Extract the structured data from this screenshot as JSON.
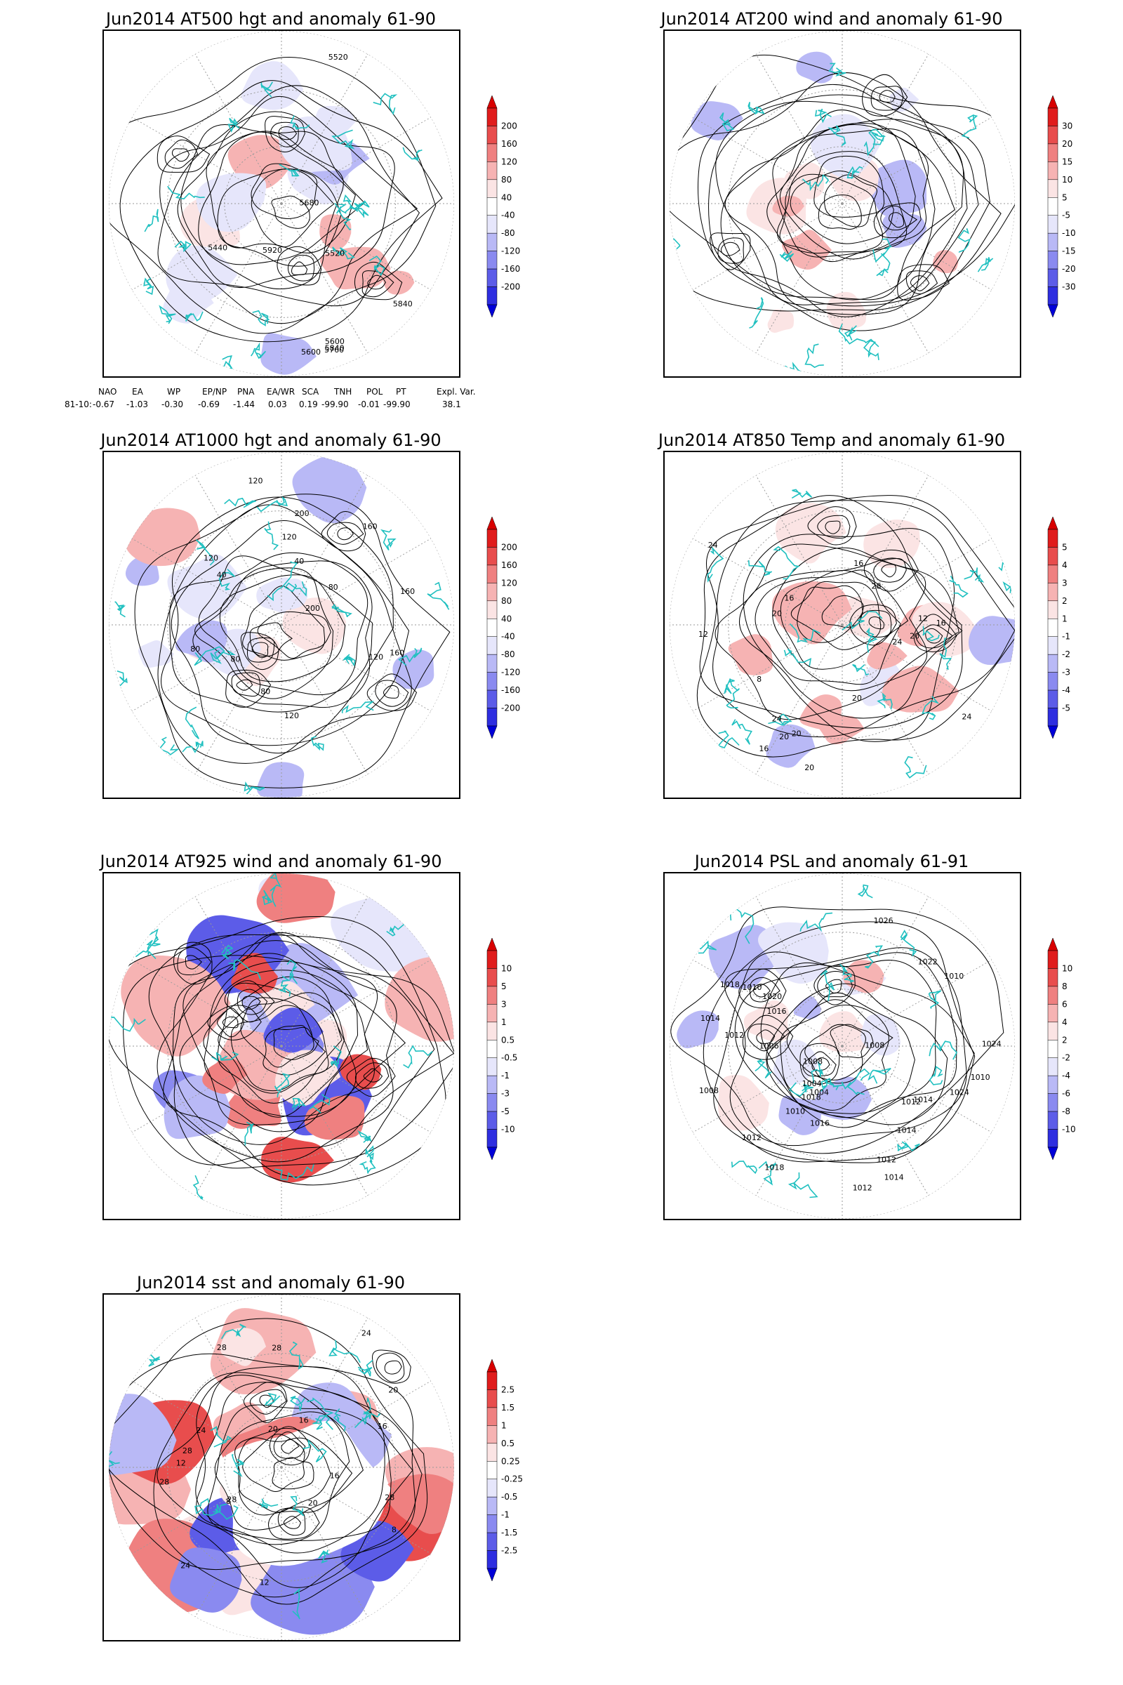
{
  "colors": {
    "coast": "#20c0c0",
    "contour": "#000000",
    "grid": "#9a9a9a",
    "pos": [
      "#fbe4e4",
      "#f6b3b3",
      "#ef8080",
      "#e84d4d",
      "#e01c1c",
      "#d80000"
    ],
    "neg": [
      "#e6e6fb",
      "#b9b9f6",
      "#8a8af0",
      "#5c5ce8",
      "#2e2ee0",
      "#0000d8"
    ]
  },
  "panels": [
    {
      "id": "at500",
      "title": "Jun2014 AT500 hgt and anomaly 61-90",
      "colorbar": [
        "200",
        "160",
        "120",
        "80",
        "40",
        "-40",
        "-80",
        "-120",
        "-160",
        "-200"
      ],
      "contour_labels": [
        "5840",
        "5600",
        "5520",
        "5440",
        "5520",
        "5600",
        "5680",
        "5760",
        "5840",
        "5920"
      ]
    },
    {
      "id": "at200",
      "title": "Jun2014 AT200 wind and anomaly 61-90",
      "colorbar": [
        "30",
        "20",
        "15",
        "10",
        "5",
        "-5",
        "-10",
        "-15",
        "-20",
        "-30"
      ],
      "contour_labels": []
    },
    {
      "id": "at1000",
      "title": "Jun2014 AT1000 hgt and anomaly 61-90",
      "colorbar": [
        "200",
        "160",
        "120",
        "80",
        "40",
        "-40",
        "-80",
        "-120",
        "-160",
        "-200"
      ],
      "contour_labels": [
        "120",
        "80",
        "200",
        "160",
        "120",
        "80",
        "40",
        "120",
        "160",
        "200",
        "160",
        "40",
        "120",
        "80",
        "80",
        "120"
      ]
    },
    {
      "id": "at850",
      "title": "Jun2014 AT850 Temp and anomaly 61-90",
      "colorbar": [
        "5",
        "4",
        "3",
        "2",
        "1",
        "-1",
        "-2",
        "-3",
        "-4",
        "-5"
      ],
      "contour_labels": [
        "16",
        "12",
        "16",
        "24",
        "20",
        "16",
        "8",
        "12",
        "24",
        "20",
        "20",
        "16",
        "20",
        "24",
        "28",
        "24",
        "20",
        "20"
      ]
    },
    {
      "id": "at925",
      "title": "Jun2014 AT925 wind and anomaly 61-90",
      "colorbar": [
        "10",
        "5",
        "3",
        "1",
        "0.5",
        "-0.5",
        "-1",
        "-3",
        "-5",
        "-10"
      ],
      "contour_labels": []
    },
    {
      "id": "psl",
      "title": "Jun2014 PSL and anomaly 61-91",
      "colorbar": [
        "10",
        "8",
        "6",
        "4",
        "2",
        "-2",
        "-4",
        "-6",
        "-8",
        "-10"
      ],
      "contour_labels": [
        "1010",
        "1012",
        "1014",
        "1016",
        "1018",
        "1026",
        "1024",
        "1010",
        "1012",
        "1014",
        "1018",
        "1008",
        "1006",
        "1004",
        "1010",
        "1012",
        "1008",
        "1004",
        "1024",
        "1022",
        "1020",
        "1018",
        "1016",
        "1014",
        "1012",
        "1010",
        "1008",
        "1012",
        "1014"
      ]
    },
    {
      "id": "sst",
      "title": "Jun2014 sst and anomaly 61-90",
      "colorbar": [
        "2.5",
        "1.5",
        "1",
        "0.5",
        "0.25",
        "-0.25",
        "-0.5",
        "-1",
        "-1.5",
        "-2.5"
      ],
      "contour_labels": [
        "28",
        "28",
        "24",
        "24",
        "20",
        "16",
        "12",
        "8",
        "16",
        "28",
        "20",
        "12",
        "8",
        "16",
        "20",
        "24",
        "28",
        "28",
        "28"
      ]
    }
  ],
  "teleconnection": {
    "headers": [
      "NAO",
      "EA",
      "WP",
      "EP/NP",
      "PNA",
      "EA/WR",
      "SCA",
      "TNH",
      "POL",
      "PT",
      "Expl. Var."
    ],
    "row_label": "81-10:",
    "values": [
      "-0.67",
      "-1.03",
      "-0.30",
      "-0.69",
      "-1.44",
      "0.03",
      "0.19",
      "-99.90",
      "-0.01",
      "-99.90",
      "38.1"
    ]
  }
}
